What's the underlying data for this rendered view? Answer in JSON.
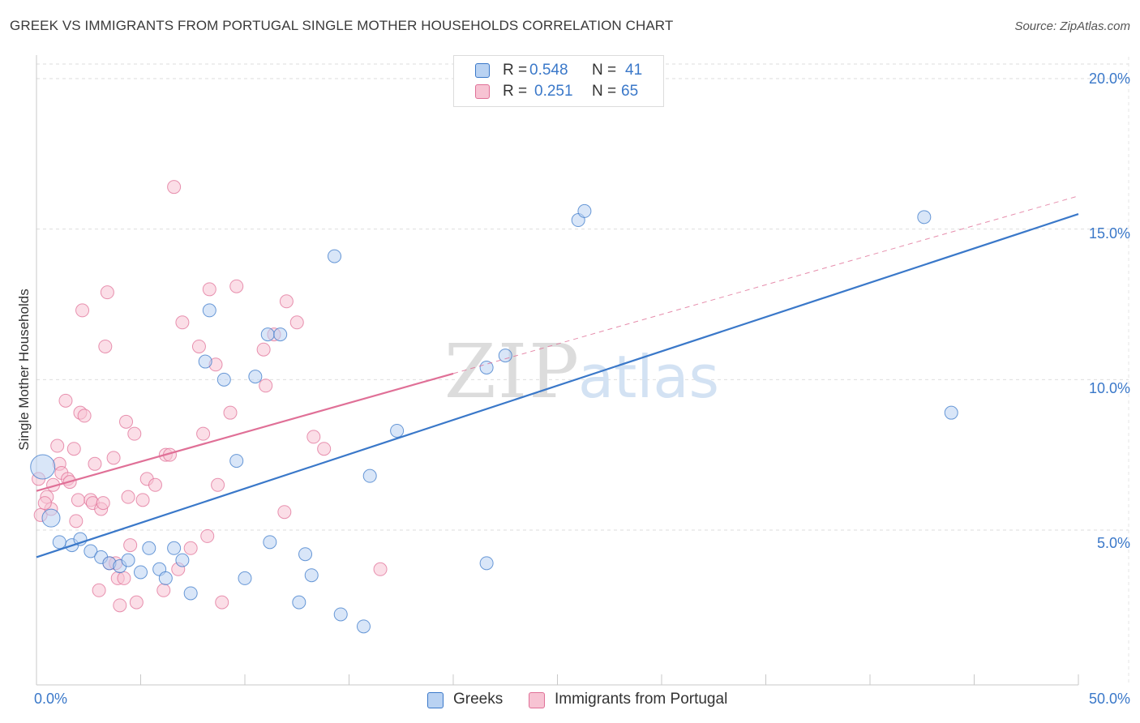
{
  "title": "GREEK VS IMMIGRANTS FROM PORTUGAL SINGLE MOTHER HOUSEHOLDS CORRELATION CHART",
  "source": "Source: ZipAtlas.com",
  "watermark": {
    "zip": "ZIP",
    "atlas": "atlas"
  },
  "legend": {
    "r_label": "R =",
    "n_label": "N =",
    "greeks": {
      "r": "0.548",
      "n": "41"
    },
    "portugal": {
      "r": "0.251",
      "n": "65"
    }
  },
  "chart_data": {
    "type": "scatter",
    "title": "GREEK VS IMMIGRANTS FROM PORTUGAL SINGLE MOTHER HOUSEHOLDS CORRELATION CHART",
    "xlabel": "",
    "ylabel": "Single Mother Households",
    "xlim": [
      0,
      50
    ],
    "ylim": [
      0,
      20.5
    ],
    "x_tick_labels": [
      "0.0%",
      "50.0%"
    ],
    "y_tick_labels": [
      "20.0%",
      "15.0%",
      "10.0%",
      "5.0%"
    ],
    "y_ticks": [
      20,
      15,
      10,
      5
    ],
    "grid": true,
    "legend_position": "top-center",
    "colors": {
      "greeks": "#3a78c9",
      "greeks_fill": "#b9d2f2",
      "portugal": "#e07097",
      "portugal_fill": "#f7c3d3"
    },
    "series": [
      {
        "name": "Greeks",
        "trend": {
          "x": [
            0,
            50
          ],
          "y": [
            4.1,
            15.5
          ]
        },
        "points": [
          [
            0.3,
            7.1
          ],
          [
            0.7,
            5.4
          ],
          [
            1.1,
            4.6
          ],
          [
            1.7,
            4.5
          ],
          [
            2.1,
            4.7
          ],
          [
            2.6,
            4.3
          ],
          [
            3.1,
            4.1
          ],
          [
            3.5,
            3.9
          ],
          [
            4.0,
            3.8
          ],
          [
            4.4,
            4.0
          ],
          [
            5.0,
            3.6
          ],
          [
            5.4,
            4.4
          ],
          [
            5.9,
            3.7
          ],
          [
            6.2,
            3.4
          ],
          [
            6.6,
            4.4
          ],
          [
            7.0,
            4.0
          ],
          [
            7.4,
            2.9
          ],
          [
            8.1,
            10.6
          ],
          [
            8.3,
            12.3
          ],
          [
            9.0,
            10.0
          ],
          [
            9.6,
            7.3
          ],
          [
            10.0,
            3.4
          ],
          [
            10.5,
            10.1
          ],
          [
            11.1,
            11.5
          ],
          [
            11.2,
            4.6
          ],
          [
            11.7,
            11.5
          ],
          [
            12.6,
            2.6
          ],
          [
            12.9,
            4.2
          ],
          [
            13.2,
            3.5
          ],
          [
            14.3,
            14.1
          ],
          [
            14.6,
            2.2
          ],
          [
            15.7,
            1.8
          ],
          [
            16.0,
            6.8
          ],
          [
            17.3,
            8.3
          ],
          [
            21.6,
            3.9
          ],
          [
            21.6,
            10.4
          ],
          [
            22.5,
            10.8
          ],
          [
            26.0,
            15.3
          ],
          [
            26.3,
            15.6
          ],
          [
            42.6,
            15.4
          ],
          [
            43.9,
            8.9
          ]
        ]
      },
      {
        "name": "Immigrants from Portugal",
        "trend": {
          "x": [
            0,
            20
          ],
          "y": [
            6.3,
            10.2
          ]
        },
        "trend_ext": {
          "x": [
            20,
            50
          ],
          "y": [
            10.2,
            16.1
          ]
        },
        "points": [
          [
            0.1,
            6.7
          ],
          [
            0.2,
            5.5
          ],
          [
            0.5,
            6.1
          ],
          [
            0.7,
            5.7
          ],
          [
            0.8,
            6.5
          ],
          [
            1.0,
            7.8
          ],
          [
            1.1,
            7.2
          ],
          [
            1.2,
            6.9
          ],
          [
            1.4,
            9.3
          ],
          [
            1.5,
            6.7
          ],
          [
            1.8,
            7.7
          ],
          [
            1.9,
            5.3
          ],
          [
            2.0,
            6.0
          ],
          [
            2.1,
            8.9
          ],
          [
            2.2,
            12.3
          ],
          [
            2.3,
            8.8
          ],
          [
            2.6,
            6.0
          ],
          [
            2.7,
            5.9
          ],
          [
            2.8,
            7.2
          ],
          [
            3.0,
            3.0
          ],
          [
            3.1,
            5.7
          ],
          [
            3.2,
            5.9
          ],
          [
            3.3,
            11.1
          ],
          [
            3.4,
            12.9
          ],
          [
            3.5,
            3.9
          ],
          [
            3.7,
            7.4
          ],
          [
            3.8,
            3.9
          ],
          [
            3.9,
            3.4
          ],
          [
            4.0,
            2.5
          ],
          [
            4.2,
            3.4
          ],
          [
            4.3,
            8.6
          ],
          [
            4.4,
            6.1
          ],
          [
            4.5,
            4.5
          ],
          [
            4.7,
            8.2
          ],
          [
            4.8,
            2.6
          ],
          [
            5.1,
            6.0
          ],
          [
            5.3,
            6.7
          ],
          [
            5.7,
            6.5
          ],
          [
            6.1,
            3.0
          ],
          [
            6.2,
            7.5
          ],
          [
            6.4,
            7.5
          ],
          [
            6.6,
            16.4
          ],
          [
            6.8,
            3.7
          ],
          [
            7.0,
            11.9
          ],
          [
            7.4,
            4.4
          ],
          [
            7.8,
            11.1
          ],
          [
            8.0,
            8.2
          ],
          [
            8.2,
            4.8
          ],
          [
            8.3,
            13.0
          ],
          [
            8.6,
            10.5
          ],
          [
            8.7,
            6.5
          ],
          [
            8.9,
            2.6
          ],
          [
            9.3,
            8.9
          ],
          [
            9.6,
            13.1
          ],
          [
            10.9,
            11.0
          ],
          [
            11.0,
            9.8
          ],
          [
            11.4,
            11.5
          ],
          [
            11.9,
            5.6
          ],
          [
            12.0,
            12.6
          ],
          [
            12.5,
            11.9
          ],
          [
            13.3,
            8.1
          ],
          [
            13.8,
            7.7
          ],
          [
            16.5,
            3.7
          ],
          [
            0.4,
            5.9
          ],
          [
            1.6,
            6.6
          ]
        ]
      }
    ]
  },
  "bottom_legend": {
    "greeks": "Greeks",
    "portugal": "Immigrants from Portugal"
  }
}
